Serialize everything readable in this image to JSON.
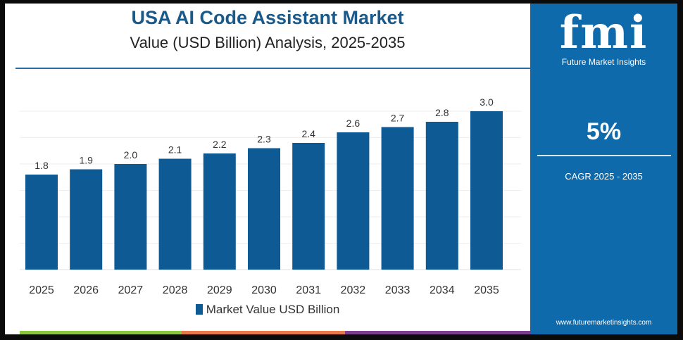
{
  "header": {
    "title": "USA AI Code Assistant Market",
    "subtitle": "Value (USD Billion) Analysis, 2025-2035"
  },
  "sidebar": {
    "logo_text": "fmi",
    "logo_subtitle": "Future Market Insights",
    "cagr_value": "5%",
    "cagr_label": "CAGR 2025 - 2035",
    "url": "www.futuremarketinsights.com"
  },
  "colors": {
    "bar": "#0e5a94",
    "title": "#1a5a8a",
    "side_panel": "#0f6aac",
    "stripes": [
      "#8dc63f",
      "#e8794a",
      "#7b3f8c"
    ]
  },
  "chart_data": {
    "type": "bar",
    "title": "USA AI Code Assistant Market",
    "subtitle": "Value (USD Billion) Analysis, 2025-2035",
    "categories": [
      "2025",
      "2026",
      "2027",
      "2028",
      "2029",
      "2030",
      "2031",
      "2032",
      "2033",
      "2034",
      "2035"
    ],
    "series": [
      {
        "name": "Market Value USD Billion",
        "values": [
          1.8,
          1.9,
          2.0,
          2.1,
          2.2,
          2.3,
          2.4,
          2.6,
          2.7,
          2.8,
          3.0
        ]
      }
    ],
    "data_labels": [
      "1.8",
      "1.9",
      "2.0",
      "2.1",
      "2.2",
      "2.3",
      "2.4",
      "2.6",
      "2.7",
      "2.8",
      "3.0"
    ],
    "xlabel": "",
    "ylabel": "",
    "grid": true,
    "legend": "bottom"
  }
}
